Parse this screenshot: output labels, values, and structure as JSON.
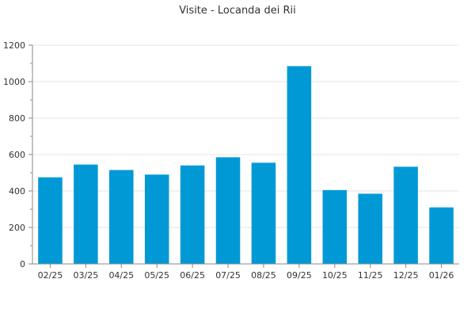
{
  "chart_data": {
    "type": "bar",
    "title": "Visite - Locanda dei Rii",
    "xlabel": "",
    "ylabel": "",
    "categories": [
      "02/25",
      "03/25",
      "04/25",
      "05/25",
      "06/25",
      "07/25",
      "08/25",
      "09/25",
      "10/25",
      "11/25",
      "12/25",
      "01/26"
    ],
    "values": [
      475,
      545,
      515,
      490,
      540,
      585,
      555,
      1085,
      405,
      385,
      533,
      310
    ],
    "ylim": [
      0,
      1200
    ],
    "yticks": [
      0,
      200,
      400,
      600,
      800,
      1000,
      1200
    ],
    "grid": true,
    "legend": "none",
    "bar_color": "#0099d6"
  }
}
